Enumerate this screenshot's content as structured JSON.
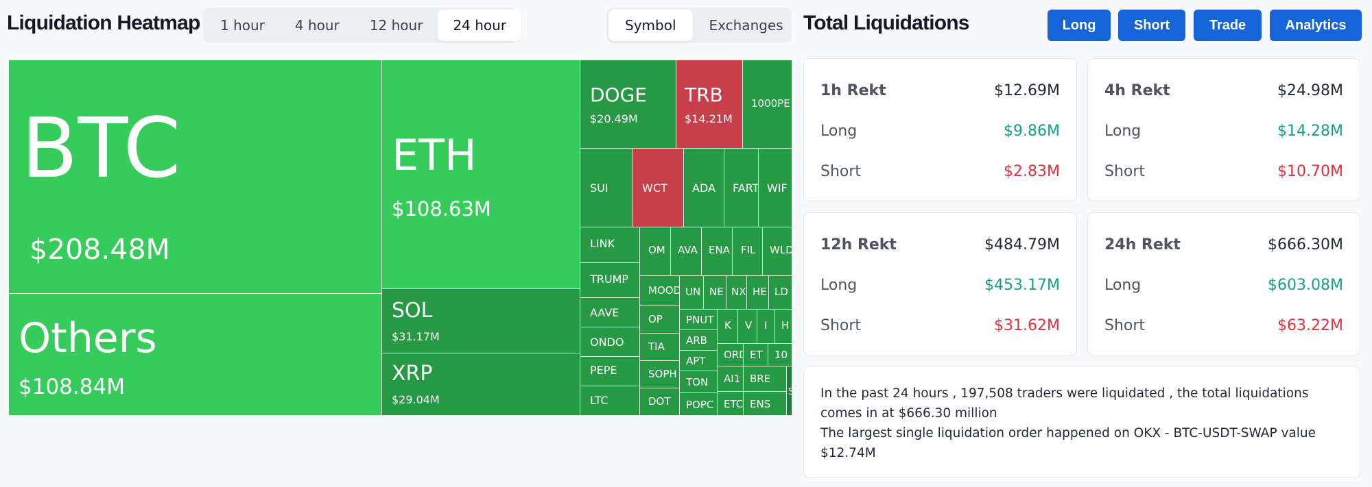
{
  "header": {
    "title": "Liquidation Heatmap",
    "time_tabs": [
      {
        "label": "1 hour",
        "active": false
      },
      {
        "label": "4 hour",
        "active": false
      },
      {
        "label": "12 hour",
        "active": false
      },
      {
        "label": "24 hour",
        "active": true
      }
    ],
    "view_tabs": [
      {
        "label": "Symbol",
        "active": true
      },
      {
        "label": "Exchanges",
        "active": false
      }
    ]
  },
  "totals": {
    "title": "Total Liquidations",
    "buttons": {
      "long": "Long",
      "short": "Short",
      "trade": "Trade",
      "analytics": "Analytics"
    },
    "accent_color": "#1565d8",
    "cards": [
      {
        "title": "1h Rekt",
        "total": "$12.69M",
        "long_label": "Long",
        "long": "$9.86M",
        "short_label": "Short",
        "short": "$2.83M"
      },
      {
        "title": "4h Rekt",
        "total": "$24.98M",
        "long_label": "Long",
        "long": "$14.28M",
        "short_label": "Short",
        "short": "$10.70M"
      },
      {
        "title": "12h Rekt",
        "total": "$484.79M",
        "long_label": "Long",
        "long": "$453.17M",
        "short_label": "Short",
        "short": "$31.62M"
      },
      {
        "title": "24h Rekt",
        "total": "$666.30M",
        "long_label": "Long",
        "long": "$603.08M",
        "short_label": "Short",
        "short": "$63.22M"
      }
    ],
    "summary": {
      "line1": "In the past 24 hours , 197,508 traders were liquidated , the total liquidations comes in at $666.30 million",
      "line2": "The largest single liquidation order happened on OKX - BTC-USDT-SWAP value $12.74M"
    }
  },
  "heatmap": {
    "colors": {
      "long_light": "#36cc5c",
      "long_mid": "#2aa549",
      "long_dark": "#279945",
      "short": "#c5404a"
    },
    "tiles": {
      "btc": {
        "name": "BTC",
        "value": "$208.48M"
      },
      "others": {
        "name": "Others",
        "value": "$108.84M"
      },
      "eth": {
        "name": "ETH",
        "value": "$108.63M"
      },
      "sol": {
        "name": "SOL",
        "value": "$31.17M"
      },
      "xrp": {
        "name": "XRP",
        "value": "$29.04M"
      },
      "doge": {
        "name": "DOGE",
        "value": "$20.49M"
      },
      "trb": {
        "name": "TRB",
        "value": "$14.21M"
      },
      "pepe1000": {
        "name": "1000PE"
      },
      "sui": {
        "name": "SUI"
      },
      "wct": {
        "name": "WCT"
      },
      "ada": {
        "name": "ADA"
      },
      "fart": {
        "name": "FART"
      },
      "wif": {
        "name": "WIF"
      },
      "link": {
        "name": "LINK"
      },
      "om": {
        "name": "OM"
      },
      "ava": {
        "name": "AVA"
      },
      "ena": {
        "name": "ENA"
      },
      "fil": {
        "name": "FIL"
      },
      "wld": {
        "name": "WLD"
      },
      "trump": {
        "name": "TRUMP"
      },
      "moo": {
        "name": "MOOD"
      },
      "un": {
        "name": "UN"
      },
      "ne": {
        "name": "NE"
      },
      "nx": {
        "name": "NX"
      },
      "he": {
        "name": "HE"
      },
      "ld": {
        "name": "LD"
      },
      "aave": {
        "name": "AAVE"
      },
      "op": {
        "name": "OP"
      },
      "pnut": {
        "name": "PNUT"
      },
      "k": {
        "name": "K"
      },
      "v": {
        "name": "V"
      },
      "i": {
        "name": "I"
      },
      "h": {
        "name": "H"
      },
      "ondo": {
        "name": "ONDO"
      },
      "tia": {
        "name": "TIA"
      },
      "arb": {
        "name": "ARB"
      },
      "pepe": {
        "name": "PEPE"
      },
      "soph": {
        "name": "SOPH"
      },
      "apt": {
        "name": "APT"
      },
      "ord": {
        "name": "ORD"
      },
      "et": {
        "name": "ET"
      },
      "t10": {
        "name": "10"
      },
      "ton": {
        "name": "TON"
      },
      "ai1": {
        "name": "AI1"
      },
      "bre": {
        "name": "BRE"
      },
      "ltc": {
        "name": "LTC"
      },
      "dot": {
        "name": "DOT"
      },
      "popc": {
        "name": "POPC"
      },
      "etc": {
        "name": "ETC"
      },
      "ens": {
        "name": "ENS"
      },
      "s": {
        "name": "S"
      }
    }
  }
}
